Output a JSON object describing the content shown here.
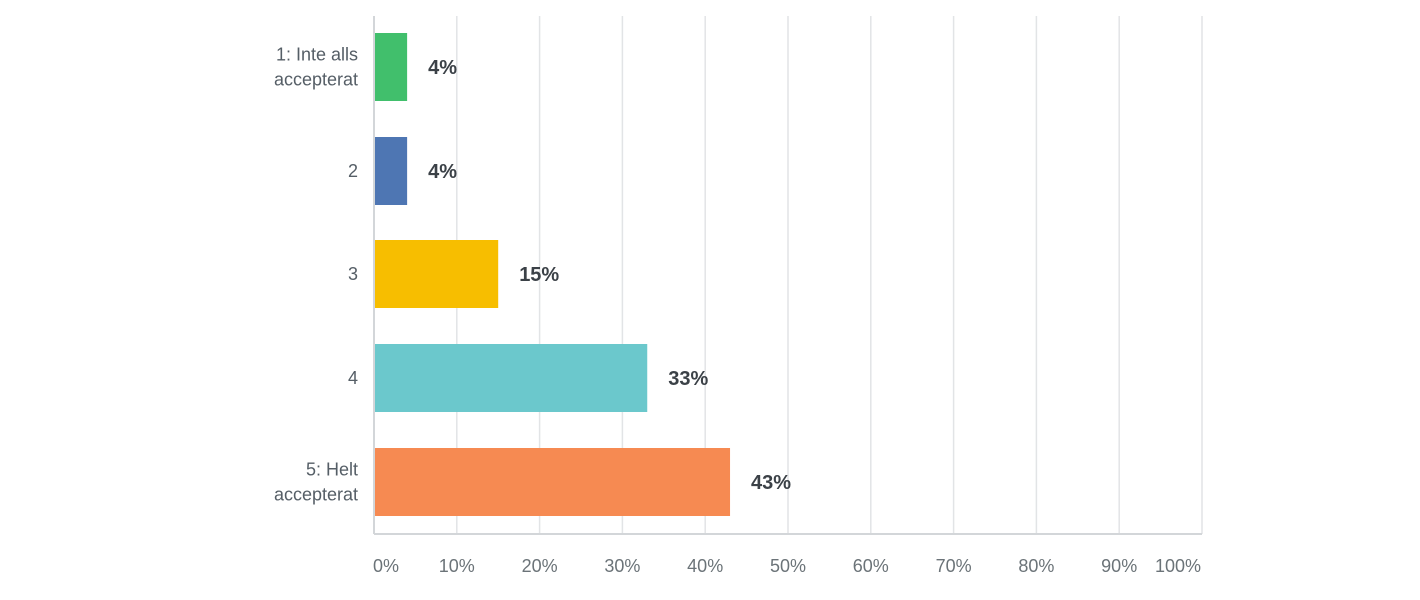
{
  "chart_data": {
    "type": "bar",
    "orientation": "horizontal",
    "categories": [
      [
        "1: Inte alls",
        "accepterat"
      ],
      [
        "2"
      ],
      [
        "3"
      ],
      [
        "4"
      ],
      [
        "5: Helt",
        "accepterat"
      ]
    ],
    "values": [
      4,
      4,
      15,
      33,
      43
    ],
    "value_labels": [
      "4%",
      "4%",
      "15%",
      "33%",
      "43%"
    ],
    "colors": [
      "#41bf6c",
      "#4e76b3",
      "#f7be00",
      "#6bc8cc",
      "#f68a52"
    ],
    "xlim": [
      0,
      100
    ],
    "x_ticks": [
      "0%",
      "10%",
      "20%",
      "30%",
      "40%",
      "50%",
      "60%",
      "70%",
      "80%",
      "90%",
      "100%"
    ],
    "grid": true,
    "legend": "none",
    "title": "",
    "xlabel": "",
    "ylabel": ""
  }
}
